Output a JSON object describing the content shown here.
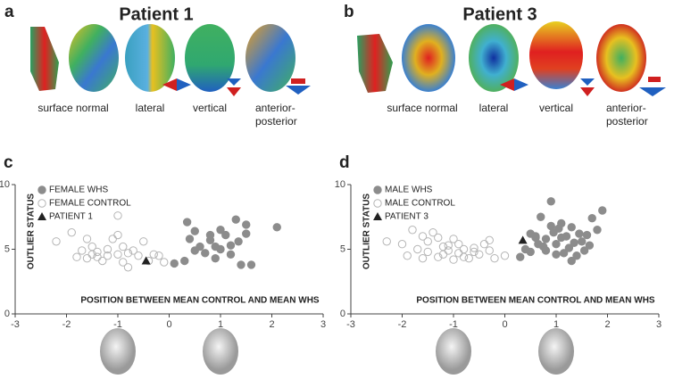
{
  "panels": [
    {
      "label": "a",
      "title": "Patient 1",
      "views": [
        [
          "surface normal"
        ],
        [
          "lateral"
        ],
        [
          "vertical"
        ],
        [
          "anterior-",
          "posterior"
        ]
      ]
    },
    {
      "label": "b",
      "title": "Patient 3",
      "views": [
        [
          "surface normal"
        ],
        [
          "lateral"
        ],
        [
          "vertical"
        ],
        [
          "anterior-",
          "posterior"
        ]
      ]
    }
  ],
  "chart_data": [
    {
      "type": "scatter",
      "panel_label": "c",
      "ylabel": "OUTLIER STATUS",
      "xlabel": "POSITION BETWEEN MEAN CONTROL AND MEAN WHS",
      "xlim": [
        -3,
        3
      ],
      "ylim": [
        0,
        10
      ],
      "xticks": [
        -3,
        -2,
        -1,
        0,
        1,
        2,
        3
      ],
      "yticks": [
        0,
        5,
        10
      ],
      "series": [
        {
          "name": "FEMALE WHS",
          "marker": "filled",
          "color": "#8c8c8c",
          "x": [
            0.1,
            0.3,
            0.35,
            0.4,
            0.5,
            0.6,
            0.7,
            0.8,
            0.9,
            1.0,
            1.0,
            1.1,
            1.2,
            1.3,
            1.35,
            1.4,
            1.5,
            1.6,
            2.1,
            0.8,
            1.2,
            0.5,
            1.5,
            0.9
          ],
          "values": [
            3.9,
            4.1,
            7.1,
            5.8,
            6.4,
            5.2,
            4.7,
            5.7,
            5.2,
            6.5,
            5.0,
            6.1,
            4.6,
            7.3,
            5.6,
            3.8,
            6.2,
            3.8,
            6.7,
            6.1,
            5.3,
            4.9,
            6.9,
            4.3
          ]
        },
        {
          "name": "FEMALE CONTROL",
          "marker": "open",
          "color": "#b5b5b5",
          "x": [
            -2.2,
            -1.9,
            -1.8,
            -1.7,
            -1.6,
            -1.5,
            -1.5,
            -1.4,
            -1.3,
            -1.2,
            -1.1,
            -1.0,
            -1.0,
            -0.9,
            -0.9,
            -0.8,
            -0.7,
            -0.6,
            -0.5,
            -0.4,
            -0.3,
            -0.2,
            -0.1,
            -1.6,
            -1.2,
            -0.8,
            -1.0,
            -1.4
          ],
          "values": [
            5.6,
            6.3,
            4.4,
            4.9,
            4.3,
            5.2,
            4.6,
            4.8,
            4.1,
            4.5,
            5.8,
            7.6,
            4.6,
            4.0,
            5.2,
            3.6,
            4.9,
            4.5,
            5.6,
            4.1,
            4.6,
            4.5,
            4.0,
            5.8,
            5.0,
            4.7,
            6.1,
            4.4
          ]
        },
        {
          "name": "PATIENT 1",
          "marker": "triangle",
          "color": "#222222",
          "x": [
            -0.45
          ],
          "values": [
            4.1
          ]
        }
      ]
    },
    {
      "type": "scatter",
      "panel_label": "d",
      "ylabel": "OUTLIER STATUS",
      "xlabel": "POSITION BETWEEN MEAN CONTROL AND MEAN WHS",
      "xlim": [
        -3,
        3
      ],
      "ylim": [
        0,
        10
      ],
      "xticks": [
        -3,
        -2,
        -1,
        0,
        1,
        2,
        3
      ],
      "yticks": [
        0,
        5,
        10
      ],
      "series": [
        {
          "name": "MALE WHS",
          "marker": "filled",
          "color": "#8c8c8c",
          "x": [
            0.3,
            0.4,
            0.5,
            0.5,
            0.6,
            0.65,
            0.7,
            0.8,
            0.8,
            0.9,
            0.95,
            1.0,
            1.0,
            1.05,
            1.1,
            1.15,
            1.2,
            1.25,
            1.3,
            1.35,
            1.4,
            1.45,
            1.5,
            1.55,
            1.6,
            1.65,
            1.7,
            1.8,
            1.9,
            0.9,
            1.1,
            0.6,
            1.3,
            0.75
          ],
          "values": [
            4.4,
            5.0,
            6.2,
            4.8,
            6.0,
            5.4,
            7.5,
            5.8,
            4.9,
            8.7,
            6.3,
            5.4,
            4.6,
            6.6,
            5.9,
            4.7,
            6.0,
            5.1,
            6.7,
            5.5,
            4.5,
            6.2,
            5.6,
            4.9,
            6.1,
            5.3,
            7.4,
            6.5,
            8.0,
            6.8,
            7.0,
            5.9,
            4.1,
            5.2
          ]
        },
        {
          "name": "MALE CONTROL",
          "marker": "open",
          "color": "#b5b5b5",
          "x": [
            -2.3,
            -2.0,
            -1.9,
            -1.8,
            -1.7,
            -1.6,
            -1.5,
            -1.5,
            -1.4,
            -1.3,
            -1.2,
            -1.2,
            -1.1,
            -1.0,
            -1.0,
            -0.9,
            -0.9,
            -0.8,
            -0.7,
            -0.6,
            -0.5,
            -0.4,
            -0.3,
            -0.2,
            0.0,
            -1.6,
            -1.1,
            -0.8,
            -0.6,
            -1.3,
            -0.3
          ],
          "values": [
            5.6,
            5.4,
            4.5,
            6.5,
            5.0,
            4.3,
            5.6,
            4.8,
            6.3,
            4.4,
            5.2,
            4.6,
            4.9,
            5.8,
            4.2,
            5.4,
            4.7,
            5.0,
            4.3,
            5.1,
            4.6,
            5.4,
            4.9,
            4.3,
            4.5,
            6.0,
            5.3,
            4.4,
            4.8,
            5.9,
            5.7
          ]
        },
        {
          "name": "PATIENT 3",
          "marker": "triangle",
          "color": "#222222",
          "x": [
            0.35
          ],
          "values": [
            5.7
          ]
        }
      ]
    }
  ]
}
